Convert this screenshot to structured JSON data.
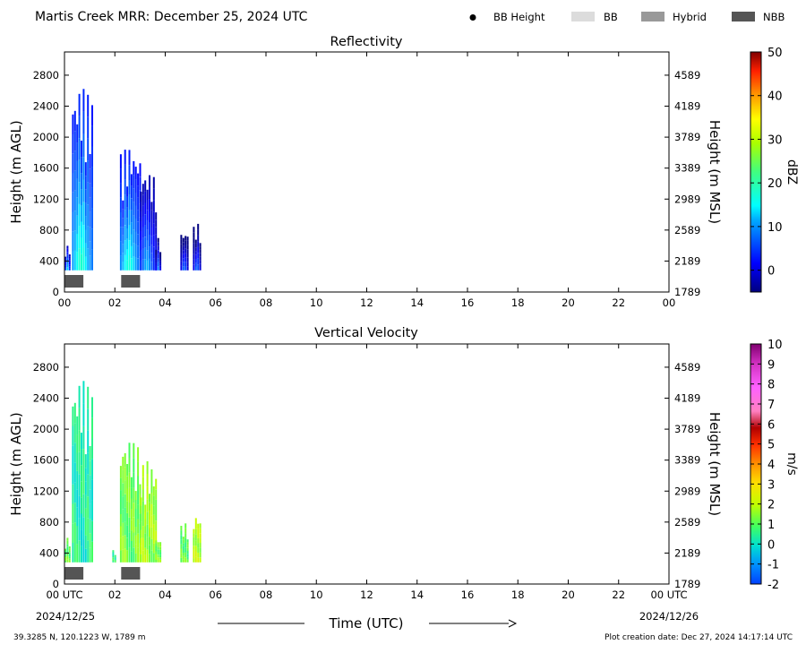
{
  "header": {
    "title": "Martis Creek MRR:  December 25, 2024 UTC",
    "legend": [
      {
        "label": "BB Height",
        "marker": "dot",
        "color": "#000000"
      },
      {
        "label": "BB",
        "marker": "box",
        "color": "#dcdcdc"
      },
      {
        "label": "Hybrid",
        "marker": "box",
        "color": "#999999"
      },
      {
        "label": "NBB",
        "marker": "box",
        "color": "#555555"
      }
    ]
  },
  "footer": {
    "location": "39.3285 N, 120.1223 W, 1789 m",
    "creation_date": "Plot creation date: Dec 27, 2024 14:17:14 UTC"
  },
  "chart_data": [
    {
      "type": "heatmap",
      "title": "Reflectivity",
      "ylabel": "Height (m AGL)",
      "ylabel_right": "Height (m MSL)",
      "xlim": [
        0,
        24
      ],
      "ylim": [
        0,
        3100
      ],
      "x_ticks": [
        "00",
        "02",
        "04",
        "06",
        "08",
        "10",
        "12",
        "14",
        "16",
        "18",
        "20",
        "22",
        "00"
      ],
      "y_ticks": [
        0,
        400,
        800,
        1200,
        1600,
        2000,
        2400,
        2800
      ],
      "y_ticks_right": [
        1789,
        2189,
        2589,
        2989,
        3389,
        3789,
        4189,
        4589
      ],
      "colorbar": {
        "label": "dBZ",
        "ticks": [
          0,
          10,
          20,
          30,
          40,
          50
        ],
        "range": [
          -5,
          50
        ]
      },
      "echo_columns": [
        {
          "start": 0.0,
          "end": 0.2,
          "top": 600,
          "value": 3
        },
        {
          "start": 0.3,
          "end": 1.1,
          "top": 2700,
          "value": 8
        },
        {
          "start": 2.2,
          "end": 3.0,
          "top": 1900,
          "value": 7
        },
        {
          "start": 3.0,
          "end": 3.6,
          "top": 1600,
          "value": 2
        },
        {
          "start": 3.6,
          "end": 3.8,
          "top": 700,
          "value": -1
        },
        {
          "start": 4.6,
          "end": 4.9,
          "top": 800,
          "value": -2
        },
        {
          "start": 5.1,
          "end": 5.4,
          "top": 900,
          "value": -2
        }
      ],
      "bright_band": [
        {
          "start": 0.0,
          "end": 0.75,
          "type": "NBB"
        },
        {
          "start": 2.25,
          "end": 3.0,
          "type": "NBB"
        }
      ]
    },
    {
      "type": "heatmap",
      "title": "Vertical Velocity",
      "ylabel": "Height (m AGL)",
      "ylabel_right": "Height (m MSL)",
      "xlabel": "Time (UTC)",
      "xlim": [
        0,
        24
      ],
      "ylim": [
        0,
        3100
      ],
      "x_ticks": [
        "00 UTC",
        "02",
        "04",
        "06",
        "08",
        "10",
        "12",
        "14",
        "16",
        "18",
        "20",
        "22",
        "00 UTC"
      ],
      "x_dates": [
        "2024/12/25",
        "2024/12/26"
      ],
      "y_ticks": [
        0,
        400,
        800,
        1200,
        1600,
        2000,
        2400,
        2800
      ],
      "y_ticks_right": [
        1789,
        2189,
        2589,
        2989,
        3389,
        3789,
        4189,
        4589
      ],
      "colorbar": {
        "label": "m/s",
        "ticks": [
          -2,
          -1,
          0,
          1,
          2,
          3,
          4,
          5,
          6,
          7,
          8,
          9,
          10
        ],
        "range": [
          -2,
          10
        ]
      },
      "echo_columns": [
        {
          "start": 0.0,
          "end": 0.2,
          "top": 600,
          "value": 1
        },
        {
          "start": 0.3,
          "end": 1.1,
          "top": 2700,
          "value": 0.3
        },
        {
          "start": 1.9,
          "end": 2.0,
          "top": 450,
          "value": 0.5
        },
        {
          "start": 2.2,
          "end": 3.0,
          "top": 1900,
          "value": 1.2
        },
        {
          "start": 3.0,
          "end": 3.6,
          "top": 1600,
          "value": 1.6
        },
        {
          "start": 3.6,
          "end": 3.8,
          "top": 600,
          "value": 1.2
        },
        {
          "start": 4.6,
          "end": 4.9,
          "top": 800,
          "value": 1.0
        },
        {
          "start": 5.1,
          "end": 5.4,
          "top": 900,
          "value": 1.8
        }
      ],
      "bright_band": [
        {
          "start": 0.0,
          "end": 0.75,
          "type": "NBB"
        },
        {
          "start": 2.25,
          "end": 3.0,
          "type": "NBB"
        }
      ]
    }
  ]
}
